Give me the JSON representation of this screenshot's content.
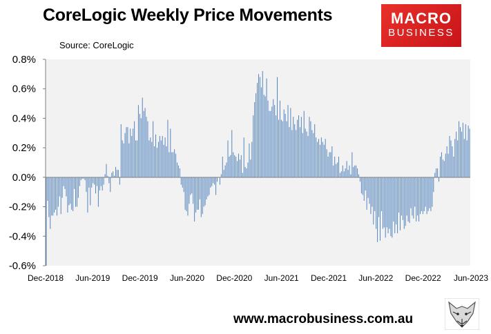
{
  "header": {
    "title": "CoreLogic Weekly Price Movements",
    "source": "Source: CoreLogic",
    "logo_line1": "MACRO",
    "logo_line2": "BUSINESS"
  },
  "footer": {
    "url": "www.macrobusiness.com.au",
    "fox_icon": "fox-head-icon"
  },
  "colors": {
    "bar": "#4f81bd",
    "plot_bg": "#f2f2f2",
    "logo_red": "#e32d26"
  },
  "chart_data": {
    "type": "bar",
    "title": "CoreLogic Weekly Price Movements",
    "xlabel": "",
    "ylabel": "",
    "ylim": [
      -0.6,
      0.8
    ],
    "yticks": [
      -0.6,
      -0.4,
      -0.2,
      0.0,
      0.2,
      0.4,
      0.6,
      0.8
    ],
    "ytick_labels": [
      "-0.6%",
      "-0.4%",
      "-0.2%",
      "0.0%",
      "0.2%",
      "0.4%",
      "0.6%",
      "0.8%"
    ],
    "xtick_labels": [
      "Dec-2018",
      "Jun-2019",
      "Dec-2019",
      "Jun-2020",
      "Dec-2020",
      "Jun-2021",
      "Dec-2021",
      "Jun-2022",
      "Dec-2022",
      "Jun-2023"
    ],
    "grid": false,
    "legend": "none",
    "x_start": "Dec-2018",
    "x_end": "Jun-2023",
    "values": [
      -0.6,
      -0.16,
      -0.27,
      -0.35,
      -0.26,
      -0.26,
      -0.24,
      -0.22,
      -0.26,
      -0.2,
      -0.13,
      -0.25,
      -0.14,
      -0.06,
      -0.08,
      -0.13,
      -0.24,
      -0.19,
      -0.18,
      -0.22,
      -0.23,
      -0.08,
      -0.2,
      -0.2,
      -0.14,
      -0.06,
      -0.02,
      -0.01,
      -0.01,
      -0.02,
      -0.1,
      -0.24,
      -0.07,
      -0.19,
      -0.07,
      -0.04,
      -0.05,
      -0.11,
      -0.06,
      -0.2,
      -0.09,
      -0.06,
      -0.09,
      -0.05,
      0.02,
      0.09,
      0.01,
      -0.04,
      -0.1,
      0.03,
      0.04,
      0.01,
      0.07,
      0.05,
      0.05,
      -0.05,
      0.36,
      0.25,
      0.23,
      0.3,
      0.34,
      0.34,
      0.23,
      0.33,
      0.28,
      0.33,
      0.38,
      0.25,
      0.25,
      0.49,
      0.43,
      0.4,
      0.54,
      0.45,
      0.47,
      0.41,
      0.38,
      0.25,
      0.27,
      0.24,
      0.38,
      0.21,
      0.29,
      0.2,
      0.24,
      0.28,
      0.25,
      0.28,
      0.22,
      0.27,
      0.21,
      0.39,
      0.17,
      0.33,
      0.17,
      0.17,
      0.19,
      0.16,
      0.1,
      0.08,
      0.06,
      -0.05,
      -0.07,
      -0.1,
      -0.22,
      -0.23,
      -0.26,
      -0.18,
      -0.12,
      -0.11,
      -0.18,
      -0.3,
      -0.24,
      -0.22,
      -0.22,
      -0.15,
      -0.27,
      -0.25,
      -0.2,
      -0.19,
      -0.15,
      -0.13,
      -0.12,
      -0.07,
      -0.06,
      -0.04,
      -0.05,
      -0.12,
      -0.03,
      0.0,
      -0.05,
      0.02,
      0.14,
      0.05,
      0.08,
      0.1,
      0.25,
      0.14,
      0.15,
      0.32,
      0.17,
      0.15,
      0.14,
      0.11,
      0.16,
      0.12,
      0.15,
      0.03,
      0.27,
      0.07,
      0.06,
      0.1,
      0.23,
      0.12,
      0.24,
      0.42,
      0.51,
      0.57,
      0.64,
      0.7,
      0.68,
      0.61,
      0.72,
      0.56,
      0.55,
      0.67,
      0.52,
      0.45,
      0.45,
      0.48,
      0.53,
      0.49,
      0.42,
      0.68,
      0.39,
      0.52,
      0.39,
      0.38,
      0.46,
      0.43,
      0.38,
      0.49,
      0.34,
      0.47,
      0.32,
      0.41,
      0.36,
      0.32,
      0.39,
      0.42,
      0.34,
      0.41,
      0.3,
      0.45,
      0.33,
      0.31,
      0.28,
      0.41,
      0.38,
      0.32,
      0.3,
      0.36,
      0.27,
      0.24,
      0.26,
      0.22,
      0.27,
      0.24,
      0.22,
      0.26,
      0.19,
      0.14,
      0.17,
      0.17,
      0.21,
      0.08,
      0.14,
      0.09,
      0.1,
      0.14,
      0.03,
      0.04,
      0.08,
      0.04,
      0.06,
      0.11,
      0.05,
      0.08,
      0.02,
      0.17,
      0.07,
      0.08,
      0.08,
      0.06,
      0.02,
      -0.03,
      -0.11,
      -0.12,
      -0.16,
      -0.09,
      -0.22,
      -0.14,
      -0.18,
      -0.25,
      -0.2,
      -0.32,
      -0.23,
      -0.35,
      -0.44,
      -0.27,
      -0.43,
      -0.23,
      -0.35,
      -0.34,
      -0.41,
      -0.34,
      -0.38,
      -0.35,
      -0.4,
      -0.41,
      -0.3,
      -0.38,
      -0.32,
      -0.38,
      -0.24,
      -0.36,
      -0.26,
      -0.29,
      -0.35,
      -0.33,
      -0.26,
      -0.3,
      -0.31,
      -0.21,
      -0.26,
      -0.28,
      -0.2,
      -0.3,
      -0.26,
      -0.3,
      -0.25,
      -0.23,
      -0.25,
      -0.23,
      -0.2,
      -0.25,
      -0.23,
      -0.21,
      -0.23,
      -0.2,
      -0.1,
      0.03,
      0.06,
      0.06,
      -0.03,
      0.14,
      0.17,
      0.12,
      0.11,
      0.16,
      0.21,
      0.16,
      0.28,
      0.25,
      0.21,
      0.14,
      0.26,
      0.31,
      0.25,
      0.38,
      0.34,
      0.31,
      0.37,
      0.26,
      0.36,
      0.25,
      0.35,
      0.33
    ]
  }
}
